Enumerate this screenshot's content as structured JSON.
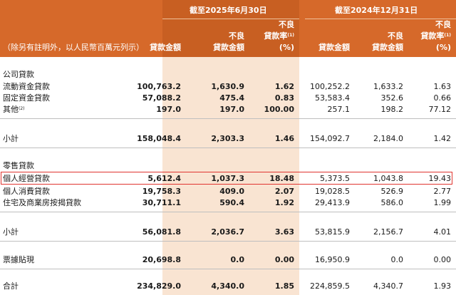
{
  "header": {
    "period1": "截至2025年6月30日",
    "period2": "截至2024年12月31日",
    "note": "（除另有註明外，以人民幣百萬元列示）",
    "cols": {
      "loan_amount": "貸款金額",
      "npl_line1": "不良",
      "npl_line2": "貸款金額",
      "ratio_line1": "不良",
      "ratio_line2": "貸款率",
      "ratio_sup": "(1)",
      "ratio_unit": "(%)"
    }
  },
  "sections": {
    "corporate": "公司貸款",
    "retail": "零售貸款"
  },
  "rows": {
    "working_capital": {
      "label": "流動資金貸款",
      "v": [
        "100,763.2",
        "1,630.9",
        "1.62",
        "100,252.2",
        "1,633.2",
        "1.63"
      ]
    },
    "fixed_asset": {
      "label": "固定資金貸款",
      "v": [
        "57,088.2",
        "475.4",
        "0.83",
        "53,583.4",
        "352.6",
        "0.66"
      ]
    },
    "others": {
      "label": "其他",
      "sup": "(2)",
      "v": [
        "197.0",
        "197.0",
        "100.00",
        "257.1",
        "198.2",
        "77.12"
      ]
    },
    "corp_subtotal": {
      "label": "小計",
      "v": [
        "158,048.4",
        "2,303.3",
        "1.46",
        "154,092.7",
        "2,184.0",
        "1.42"
      ]
    },
    "personal_business": {
      "label": "個人經營貸款",
      "v": [
        "5,612.4",
        "1,037.3",
        "18.48",
        "5,373.5",
        "1,043.8",
        "19.43"
      ]
    },
    "personal_consumption": {
      "label": "個人消費貸款",
      "v": [
        "19,758.3",
        "409.0",
        "2.07",
        "19,028.5",
        "526.9",
        "2.77"
      ]
    },
    "mortgage": {
      "label": "住宅及商業房按揭貸款",
      "v": [
        "30,711.1",
        "590.4",
        "1.92",
        "29,413.9",
        "586.0",
        "1.99"
      ]
    },
    "retail_subtotal": {
      "label": "小計",
      "v": [
        "56,081.8",
        "2,036.7",
        "3.63",
        "53,815.9",
        "2,156.7",
        "4.01"
      ]
    },
    "discounted_bills": {
      "label": "票據貼現",
      "v": [
        "20,698.8",
        "0.0",
        "0.00",
        "16,950.9",
        "0.0",
        "0.00"
      ]
    },
    "total": {
      "label": "合計",
      "v": [
        "234,829.0",
        "4,340.0",
        "1.85",
        "224,859.5",
        "4,340.7",
        "1.93"
      ]
    }
  },
  "colors": {
    "header_orange": "#d6692a",
    "shade_column": "#f9e4d2",
    "highlight_red": "#e0342f"
  }
}
